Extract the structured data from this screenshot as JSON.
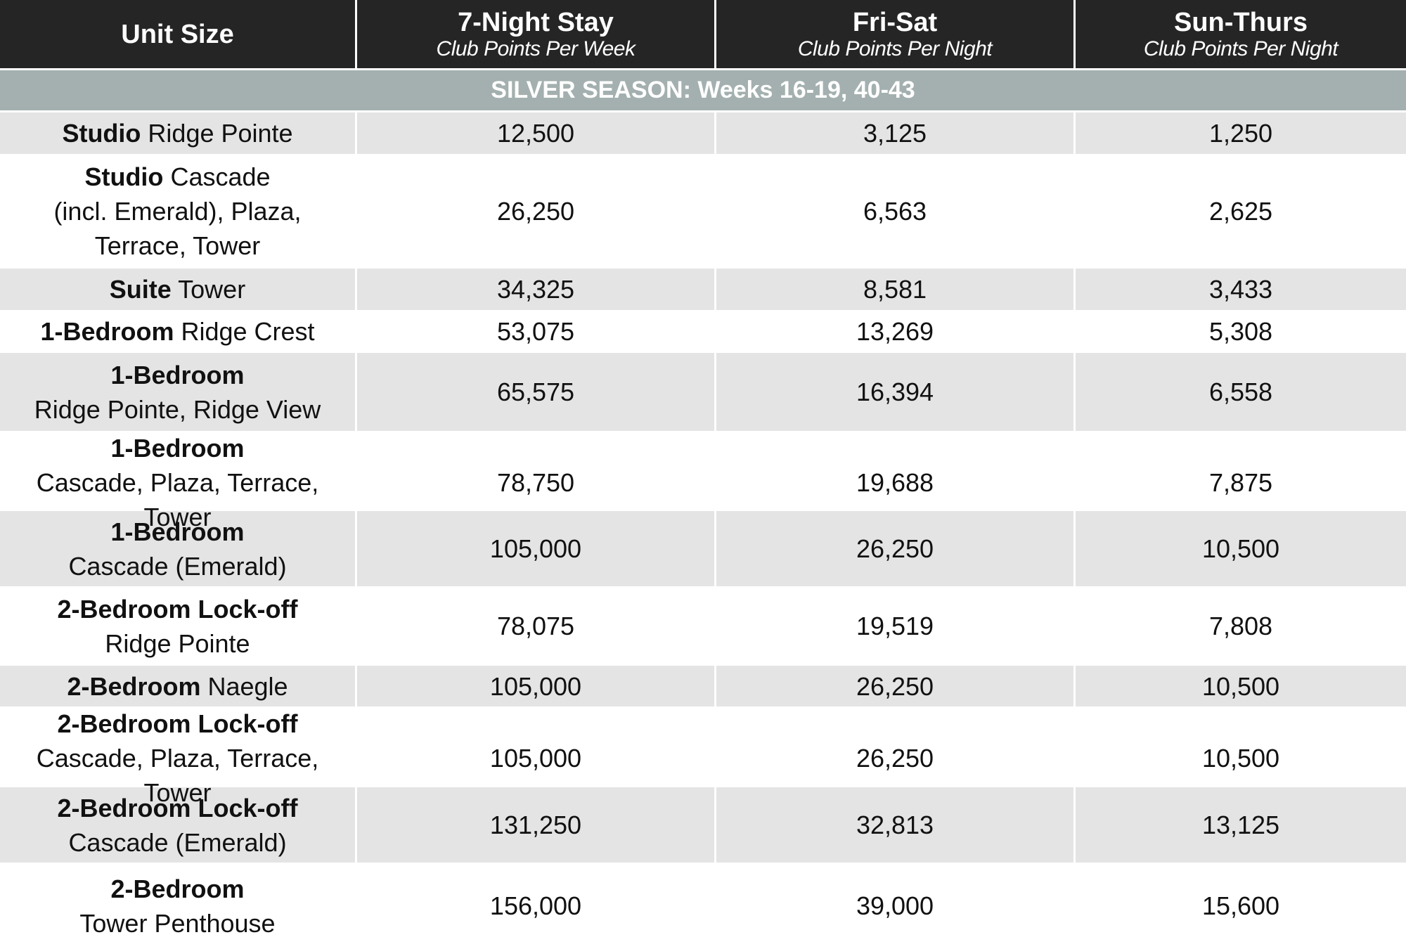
{
  "header": {
    "columns": [
      {
        "title": "Unit Size",
        "subtitle": ""
      },
      {
        "title": "7-Night Stay",
        "subtitle": "Club Points Per Week"
      },
      {
        "title": "Fri-Sat",
        "subtitle": "Club Points Per Night"
      },
      {
        "title": "Sun-Thurs",
        "subtitle": "Club Points Per Night"
      }
    ]
  },
  "season": {
    "label": "SILVER SEASON: Weeks 16-19, 40-43"
  },
  "colors": {
    "header_bg": "#252525",
    "season_bg": "#a3b0af",
    "row_shade": "#e4e4e4",
    "row_white": "#ffffff"
  },
  "rows": [
    {
      "unit_bold": "Studio",
      "unit_rest": " Ridge Pointe",
      "unit_line2": "",
      "unit_line3": "",
      "week": "12,500",
      "fri_sat": "3,125",
      "sun_thurs": "1,250"
    },
    {
      "unit_bold": "Studio",
      "unit_rest": " Cascade",
      "unit_line2": "(incl. Emerald), Plaza,",
      "unit_line3": "Terrace, Tower",
      "week": "26,250",
      "fri_sat": "6,563",
      "sun_thurs": "2,625"
    },
    {
      "unit_bold": "Suite",
      "unit_rest": " Tower",
      "unit_line2": "",
      "unit_line3": "",
      "week": "34,325",
      "fri_sat": "8,581",
      "sun_thurs": "3,433"
    },
    {
      "unit_bold": "1-Bedroom",
      "unit_rest": " Ridge Crest",
      "unit_line2": "",
      "unit_line3": "",
      "week": "53,075",
      "fri_sat": "13,269",
      "sun_thurs": "5,308"
    },
    {
      "unit_bold": "1-Bedroom",
      "unit_rest": "",
      "unit_line2": "Ridge Pointe, Ridge View",
      "unit_line3": "",
      "week": "65,575",
      "fri_sat": "16,394",
      "sun_thurs": "6,558"
    },
    {
      "unit_bold": "1-Bedroom",
      "unit_rest": "",
      "unit_line2": "Cascade, Plaza, Terrace, Tower",
      "unit_line3": "",
      "week": "78,750",
      "fri_sat": "19,688",
      "sun_thurs": "7,875"
    },
    {
      "unit_bold": "1-Bedroom",
      "unit_rest": "",
      "unit_line2": "Cascade (Emerald)",
      "unit_line3": "",
      "week": "105,000",
      "fri_sat": "26,250",
      "sun_thurs": "10,500"
    },
    {
      "unit_bold": "2-Bedroom Lock-off",
      "unit_rest": "",
      "unit_line2": "Ridge Pointe",
      "unit_line3": "",
      "week": "78,075",
      "fri_sat": "19,519",
      "sun_thurs": "7,808"
    },
    {
      "unit_bold": "2-Bedroom",
      "unit_rest": " Naegle",
      "unit_line2": "",
      "unit_line3": "",
      "week": "105,000",
      "fri_sat": "26,250",
      "sun_thurs": "10,500"
    },
    {
      "unit_bold": "2-Bedroom Lock-off",
      "unit_rest": "",
      "unit_line2": "Cascade, Plaza, Terrace, Tower",
      "unit_line3": "",
      "week": "105,000",
      "fri_sat": "26,250",
      "sun_thurs": "10,500"
    },
    {
      "unit_bold": "2-Bedroom Lock-off",
      "unit_rest": "",
      "unit_line2": "Cascade (Emerald)",
      "unit_line3": "",
      "week": "131,250",
      "fri_sat": "32,813",
      "sun_thurs": "13,125"
    },
    {
      "unit_bold": "2-Bedroom",
      "unit_rest": "",
      "unit_line2": "Tower Penthouse",
      "unit_line3": "",
      "week": "156,000",
      "fri_sat": "39,000",
      "sun_thurs": "15,600"
    }
  ]
}
